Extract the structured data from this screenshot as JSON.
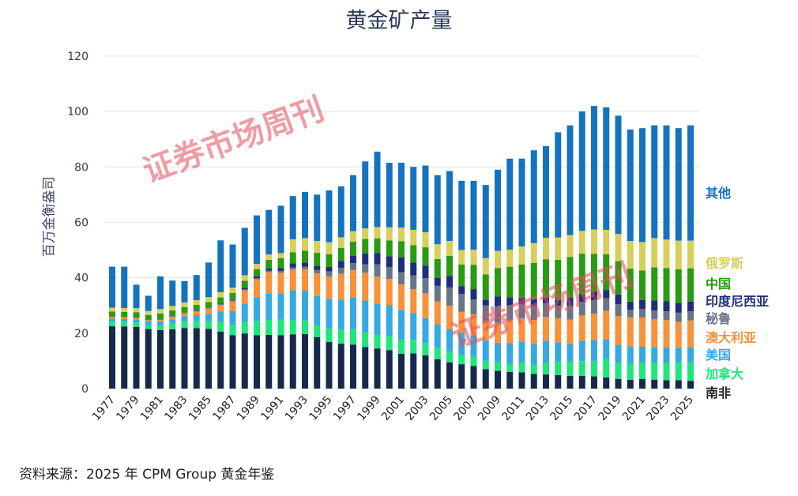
{
  "chart_data": {
    "type": "bar",
    "stacked": true,
    "title": "黄金矿产量",
    "ylabel": "百万金衡盎司",
    "xlabel": "",
    "ylim": [
      0,
      120
    ],
    "yticks": [
      0,
      20,
      40,
      60,
      80,
      100,
      120
    ],
    "grid": true,
    "legend_position": "right",
    "categories": [
      1977,
      1978,
      1979,
      1980,
      1981,
      1982,
      1983,
      1984,
      1985,
      1986,
      1987,
      1988,
      1989,
      1990,
      1991,
      1992,
      1993,
      1994,
      1995,
      1996,
      1997,
      1998,
      1999,
      2000,
      2001,
      2002,
      2003,
      2004,
      2005,
      2006,
      2007,
      2008,
      2009,
      2010,
      2011,
      2012,
      2013,
      2014,
      2015,
      2016,
      2017,
      2018,
      2019,
      2020,
      2021,
      2022,
      2023,
      2024,
      2025
    ],
    "xtick_labels": [
      "1977",
      "1979",
      "1981",
      "1983",
      "1985",
      "1987",
      "1989",
      "1991",
      "1993",
      "1995",
      "1997",
      "1999",
      "2001",
      "2003",
      "2005",
      "2007",
      "2009",
      "2011",
      "2013",
      "2015",
      "2017",
      "2019",
      "2021",
      "2023",
      "2025"
    ],
    "series": [
      {
        "name": "南非",
        "color": "#15294a",
        "values": [
          22.5,
          22.4,
          22.3,
          21.5,
          21.1,
          21.4,
          21.8,
          21.8,
          21.6,
          20.6,
          19.3,
          19.9,
          19.3,
          19.4,
          19.3,
          19.6,
          19.7,
          18.6,
          16.8,
          16.2,
          15.9,
          15.0,
          14.5,
          13.9,
          12.6,
          12.7,
          12.0,
          10.6,
          9.5,
          8.8,
          8.2,
          7.0,
          6.4,
          6.0,
          5.9,
          5.3,
          5.1,
          4.9,
          4.6,
          4.6,
          4.4,
          4.0,
          3.5,
          3.2,
          3.5,
          3.2,
          3.0,
          3.0,
          2.8
        ]
      },
      {
        "name": "加拿大",
        "color": "#1ee67a",
        "values": [
          1.7,
          1.7,
          1.6,
          1.6,
          1.7,
          2.1,
          2.4,
          2.6,
          2.8,
          3.4,
          3.7,
          4.2,
          5.1,
          5.4,
          5.6,
          5.2,
          4.9,
          4.2,
          4.9,
          5.0,
          5.5,
          5.3,
          5.0,
          5.0,
          5.0,
          4.9,
          4.5,
          4.2,
          3.8,
          3.3,
          3.3,
          3.0,
          3.1,
          3.0,
          3.4,
          3.4,
          4.3,
          4.9,
          5.1,
          5.3,
          5.6,
          6.6,
          5.7,
          5.8,
          5.9,
          6.2,
          6.4,
          6.5,
          6.7
        ]
      },
      {
        "name": "美国",
        "color": "#36a9e1",
        "values": [
          1.0,
          1.0,
          0.9,
          1.0,
          1.4,
          1.5,
          1.9,
          2.1,
          2.6,
          3.8,
          5.0,
          6.4,
          8.6,
          9.4,
          9.4,
          10.7,
          10.6,
          10.6,
          10.6,
          10.7,
          11.4,
          11.5,
          11.2,
          11.3,
          10.8,
          9.6,
          8.9,
          8.3,
          8.2,
          8.1,
          7.7,
          7.5,
          7.1,
          7.4,
          7.5,
          7.5,
          7.9,
          6.9,
          6.4,
          7.4,
          7.4,
          7.3,
          6.6,
          6.2,
          5.7,
          5.4,
          5.4,
          5.1,
          5.3
        ]
      },
      {
        "name": "澳大利亚",
        "color": "#f7923a",
        "values": [
          0.6,
          0.6,
          0.6,
          0.5,
          0.6,
          0.9,
          1.0,
          1.3,
          1.9,
          2.4,
          3.5,
          4.9,
          6.4,
          7.8,
          7.5,
          7.5,
          7.9,
          8.2,
          8.2,
          9.6,
          10.0,
          10.0,
          9.7,
          9.4,
          9.2,
          8.7,
          9.0,
          8.4,
          8.4,
          7.5,
          7.6,
          6.9,
          7.2,
          8.3,
          8.6,
          8.6,
          8.6,
          8.7,
          8.8,
          9.1,
          9.6,
          10.2,
          10.4,
          10.5,
          10.5,
          10.3,
          9.9,
          9.5,
          9.8
        ]
      },
      {
        "name": "秘鲁",
        "color": "#687587",
        "values": [
          0.15,
          0.15,
          0.15,
          0.15,
          0.2,
          0.2,
          0.2,
          0.3,
          0.3,
          0.4,
          0.5,
          0.5,
          0.5,
          0.6,
          0.7,
          0.7,
          0.9,
          1.2,
          1.8,
          2.1,
          2.5,
          3.0,
          4.4,
          4.3,
          4.4,
          5.0,
          5.5,
          5.6,
          6.6,
          6.5,
          5.4,
          5.6,
          5.9,
          5.3,
          5.0,
          5.0,
          4.9,
          4.5,
          4.8,
          4.9,
          4.9,
          4.5,
          4.2,
          2.8,
          3.1,
          3.1,
          3.2,
          3.3,
          3.3
        ]
      },
      {
        "name": "印度尼西亚",
        "color": "#1f2e7a",
        "values": [
          0.05,
          0.05,
          0.05,
          0.05,
          0.1,
          0.1,
          0.1,
          0.1,
          0.1,
          0.2,
          0.3,
          0.5,
          0.6,
          0.7,
          1.0,
          1.5,
          1.5,
          1.5,
          1.6,
          2.5,
          2.7,
          4.0,
          4.1,
          3.9,
          5.4,
          4.6,
          4.5,
          2.9,
          4.2,
          2.8,
          3.7,
          2.1,
          3.5,
          3.0,
          2.5,
          2.4,
          2.0,
          2.0,
          3.1,
          2.6,
          3.1,
          3.0,
          3.6,
          2.9,
          3.3,
          3.6,
          3.6,
          3.5,
          3.5
        ]
      },
      {
        "name": "中国",
        "color": "#2a9a14",
        "values": [
          1.8,
          1.8,
          2.0,
          1.8,
          2.0,
          2.0,
          2.0,
          2.0,
          1.9,
          2.1,
          2.2,
          2.5,
          2.6,
          3.2,
          3.6,
          4.0,
          4.3,
          4.7,
          4.6,
          4.7,
          5.0,
          5.2,
          5.3,
          5.7,
          5.8,
          6.3,
          6.6,
          6.8,
          7.2,
          7.8,
          8.8,
          9.1,
          10.3,
          11.0,
          11.9,
          13.2,
          13.9,
          14.6,
          14.7,
          14.8,
          13.6,
          12.9,
          12.0,
          11.9,
          10.6,
          12.0,
          12.0,
          12.2,
          12.0
        ]
      },
      {
        "name": "俄罗斯",
        "color": "#d8cf5a",
        "values": [
          1.4,
          1.4,
          1.4,
          1.4,
          1.6,
          1.6,
          1.7,
          1.7,
          1.8,
          1.9,
          1.9,
          2.0,
          1.9,
          1.9,
          1.8,
          4.7,
          4.5,
          4.3,
          4.3,
          3.8,
          3.8,
          3.8,
          4.1,
          4.7,
          4.9,
          5.5,
          5.4,
          5.3,
          5.4,
          5.2,
          5.4,
          5.9,
          6.2,
          6.1,
          6.5,
          7.1,
          7.7,
          8.0,
          7.9,
          8.2,
          8.8,
          8.8,
          9.8,
          10.0,
          10.3,
          10.5,
          10.3,
          10.3,
          10.0
        ]
      },
      {
        "name": "其他",
        "color": "#1473be",
        "values": [
          14.8,
          14.9,
          8.5,
          5.5,
          11.8,
          9.2,
          7.7,
          9.1,
          12.5,
          18.7,
          15.6,
          17.1,
          17.5,
          16.1,
          17.1,
          15.6,
          16.7,
          16.7,
          18.7,
          18.4,
          20.2,
          24.2,
          27.2,
          23.3,
          23.4,
          22.7,
          24.1,
          24.9,
          25.2,
          25.0,
          24.9,
          26.4,
          29.3,
          32.9,
          31.7,
          33.5,
          33.1,
          38.0,
          39.6,
          43.1,
          44.6,
          44.2,
          42.7,
          40.2,
          41.1,
          40.7,
          41.2,
          40.6,
          41.6
        ]
      }
    ]
  },
  "source": "资料来源：2025 年 CPM Group 黄金年鉴",
  "watermark": {
    "text": "证券市场周刊",
    "color": "#e0505a"
  }
}
